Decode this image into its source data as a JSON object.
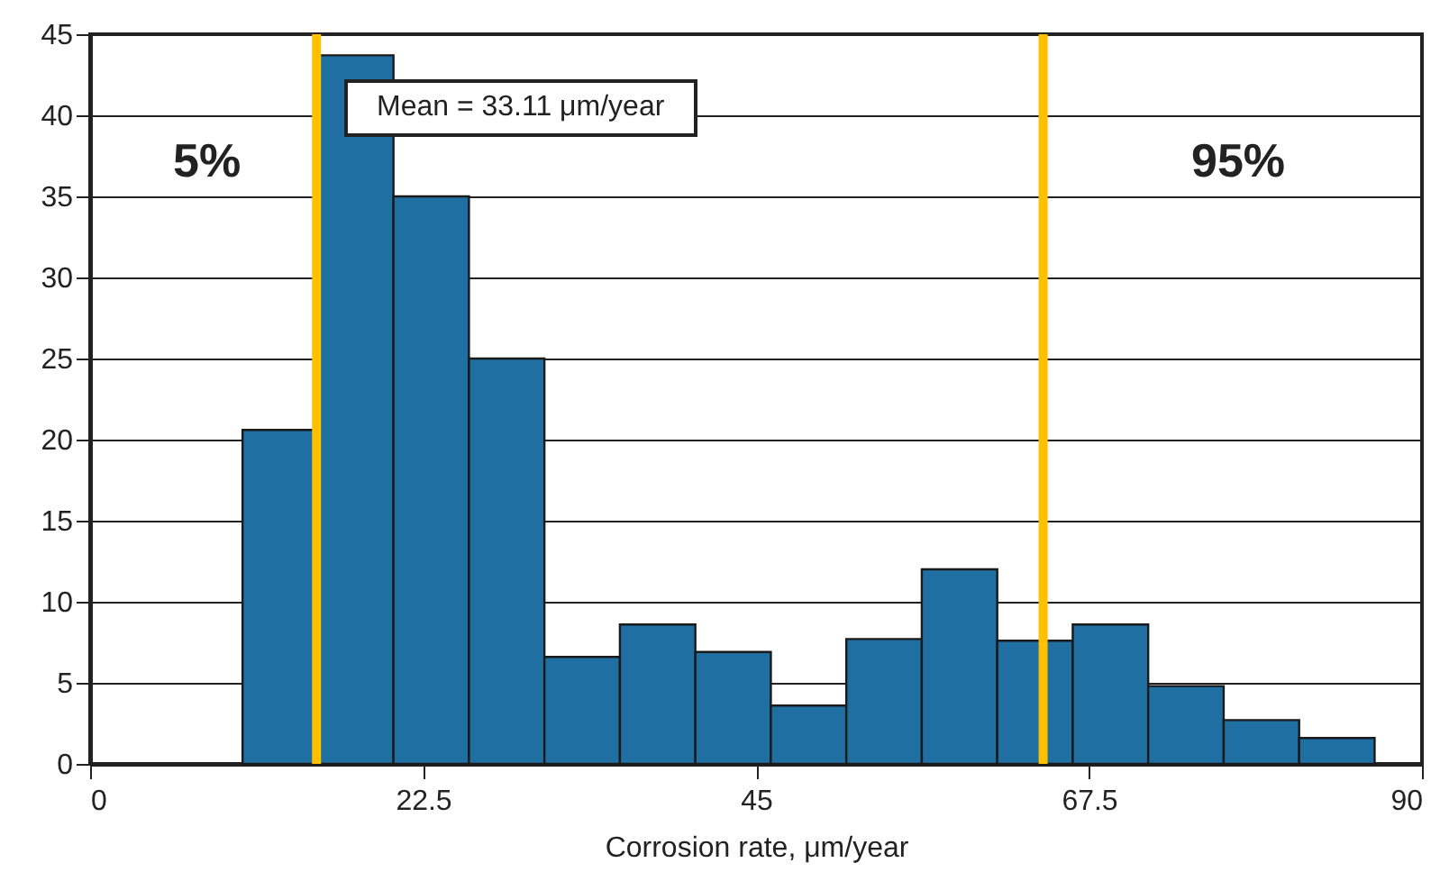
{
  "chart_data": {
    "type": "histogram",
    "xlabel": "Corrosion rate, μm/year",
    "bins": [
      10.3,
      15.4,
      20.5,
      25.6,
      30.7,
      35.8,
      40.9,
      46.0,
      51.1,
      56.2,
      61.3,
      66.4,
      71.5,
      76.6,
      81.7,
      86.8
    ],
    "values": [
      20.6,
      43.7,
      35.0,
      25.0,
      6.6,
      8.6,
      6.9,
      3.6,
      7.7,
      12.0,
      7.6,
      8.6,
      4.8,
      2.7,
      1.6
    ],
    "color": "#1f6fa3",
    "xlim": [
      0,
      90
    ],
    "xticks": [
      0,
      22.5,
      45,
      67.5,
      90
    ],
    "ylim": [
      0,
      45
    ],
    "yticks": [
      0,
      5,
      10,
      15,
      20,
      25,
      30,
      35,
      40,
      45
    ],
    "grid": "y",
    "ref_lines": [
      {
        "axis": "x",
        "value": 15.3,
        "color": "#ffc000"
      },
      {
        "axis": "x",
        "value": 64.4,
        "color": "#ffc000"
      }
    ],
    "annotations": [
      "Mean = 33.11 μm/year",
      "5%",
      "95%"
    ]
  }
}
